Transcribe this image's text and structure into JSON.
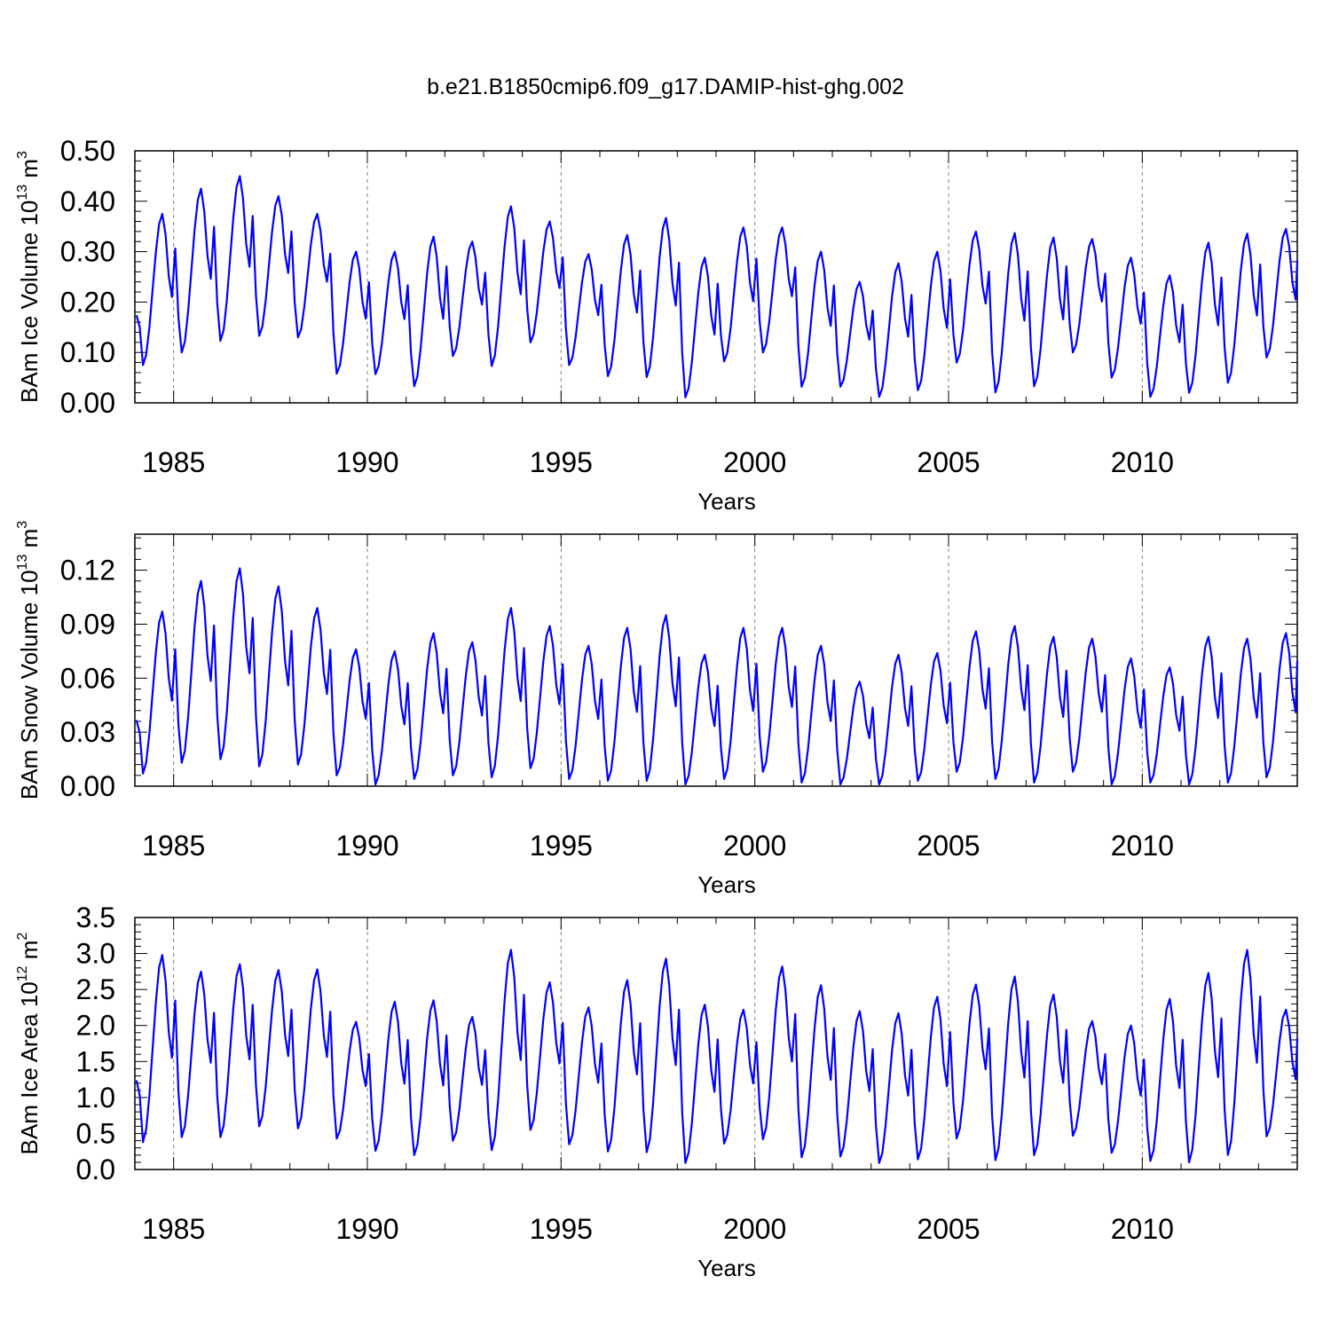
{
  "figure": {
    "title": "b.e21.B1850cmip6.f09_g17.DAMIP-hist-ghg.002"
  },
  "colors": {
    "series": "#0000ff",
    "axis": "#000000",
    "grid": "#808080",
    "background": "#ffffff"
  },
  "chart_data": [
    {
      "type": "line",
      "title": "BAm Ice Volume",
      "ylabel": {
        "text": "BAm Ice Volume 10",
        "exponent": "13",
        "unit": "m",
        "unit_exponent": "3"
      },
      "xlabel": "Years",
      "xlim": [
        1984.0,
        2014.0
      ],
      "ylim": [
        0.0,
        0.5
      ],
      "yticks": [
        0.0,
        0.1,
        0.2,
        0.3,
        0.4,
        0.5
      ],
      "ytick_labels": [
        "0.00",
        "0.10",
        "0.20",
        "0.30",
        "0.40",
        "0.50"
      ],
      "xticks": [
        1985,
        1990,
        1995,
        2000,
        2005,
        2010
      ],
      "xtick_labels": [
        "1985",
        "1990",
        "1995",
        "2000",
        "2005",
        "2010"
      ],
      "grid": "vertical dashed at major x ticks",
      "series": [
        {
          "name": "BAm Ice Volume",
          "start_year": 1984.0,
          "step": "monthly",
          "maxima": [
            0.375,
            0.425,
            0.45,
            0.41,
            0.375,
            0.3,
            0.3,
            0.33,
            0.32,
            0.39,
            0.36,
            0.295,
            0.333,
            0.367,
            0.288,
            0.348,
            0.348,
            0.3,
            0.24,
            0.277,
            0.3,
            0.34,
            0.337,
            0.328,
            0.325,
            0.288,
            0.253,
            0.318,
            0.336,
            0.345
          ],
          "minima": [
            0.075,
            0.1,
            0.123,
            0.133,
            0.13,
            0.058,
            0.057,
            0.033,
            0.093,
            0.073,
            0.12,
            0.075,
            0.053,
            0.051,
            0.011,
            0.082,
            0.1,
            0.032,
            0.032,
            0.012,
            0.025,
            0.08,
            0.021,
            0.033,
            0.1,
            0.05,
            0.012,
            0.02,
            0.04,
            0.09
          ]
        }
      ]
    },
    {
      "type": "line",
      "title": "BAm Snow Volume",
      "ylabel": {
        "text": "BAm Snow Volume 10",
        "exponent": "13",
        "unit": "m",
        "unit_exponent": "3"
      },
      "xlabel": "Years",
      "xlim": [
        1984.0,
        2014.0
      ],
      "ylim": [
        0.0,
        0.14
      ],
      "yticks": [
        0.0,
        0.03,
        0.06,
        0.09,
        0.12
      ],
      "ytick_labels": [
        "0.00",
        "0.03",
        "0.06",
        "0.09",
        "0.12"
      ],
      "xticks": [
        1985,
        1990,
        1995,
        2000,
        2005,
        2010
      ],
      "xtick_labels": [
        "1985",
        "1990",
        "1995",
        "2000",
        "2005",
        "2010"
      ],
      "grid": "vertical dashed at major x ticks",
      "series": [
        {
          "name": "BAm Snow Volume",
          "start_year": 1984.0,
          "step": "monthly",
          "maxima": [
            0.097,
            0.114,
            0.121,
            0.111,
            0.099,
            0.076,
            0.075,
            0.085,
            0.08,
            0.099,
            0.089,
            0.078,
            0.088,
            0.095,
            0.073,
            0.088,
            0.088,
            0.078,
            0.058,
            0.073,
            0.074,
            0.086,
            0.089,
            0.083,
            0.082,
            0.071,
            0.066,
            0.083,
            0.082,
            0.085
          ],
          "minima": [
            0.007,
            0.013,
            0.015,
            0.011,
            0.012,
            0.006,
            0.001,
            0.004,
            0.006,
            0.005,
            0.01,
            0.004,
            0.003,
            0.003,
            0.001,
            0.004,
            0.008,
            0.002,
            0.001,
            0.001,
            0.003,
            0.008,
            0.004,
            0.002,
            0.008,
            0.001,
            0.002,
            0.001,
            0.002,
            0.005
          ]
        }
      ]
    },
    {
      "type": "line",
      "title": "BAm Ice Area",
      "ylabel": {
        "text": "BAm Ice Area 10",
        "exponent": "12",
        "unit": "m",
        "unit_exponent": "2"
      },
      "xlabel": "Years",
      "xlim": [
        1984.0,
        2014.0
      ],
      "ylim": [
        0.0,
        3.5
      ],
      "yticks": [
        0.0,
        0.5,
        1.0,
        1.5,
        2.0,
        2.5,
        3.0,
        3.5
      ],
      "ytick_labels": [
        "0.0",
        "0.5",
        "1.0",
        "1.5",
        "2.0",
        "2.5",
        "3.0",
        "3.5"
      ],
      "xticks": [
        1985,
        1990,
        1995,
        2000,
        2005,
        2010
      ],
      "xtick_labels": [
        "1985",
        "1990",
        "1995",
        "2000",
        "2005",
        "2010"
      ],
      "grid": "vertical dashed at major x ticks",
      "series": [
        {
          "name": "BAm Ice Area",
          "start_year": 1984.0,
          "step": "monthly",
          "maxima": [
            2.98,
            2.75,
            2.85,
            2.77,
            2.78,
            2.05,
            2.33,
            2.35,
            2.12,
            3.05,
            2.6,
            2.25,
            2.63,
            2.93,
            2.29,
            2.22,
            2.82,
            2.56,
            2.2,
            2.17,
            2.4,
            2.57,
            2.68,
            2.43,
            2.06,
            2.0,
            2.37,
            2.73,
            3.05,
            2.22
          ],
          "minima": [
            0.38,
            0.45,
            0.45,
            0.6,
            0.57,
            0.43,
            0.26,
            0.2,
            0.4,
            0.27,
            0.55,
            0.35,
            0.25,
            0.24,
            0.09,
            0.36,
            0.42,
            0.17,
            0.18,
            0.09,
            0.14,
            0.43,
            0.13,
            0.2,
            0.47,
            0.23,
            0.12,
            0.1,
            0.2,
            0.46
          ]
        }
      ]
    }
  ]
}
